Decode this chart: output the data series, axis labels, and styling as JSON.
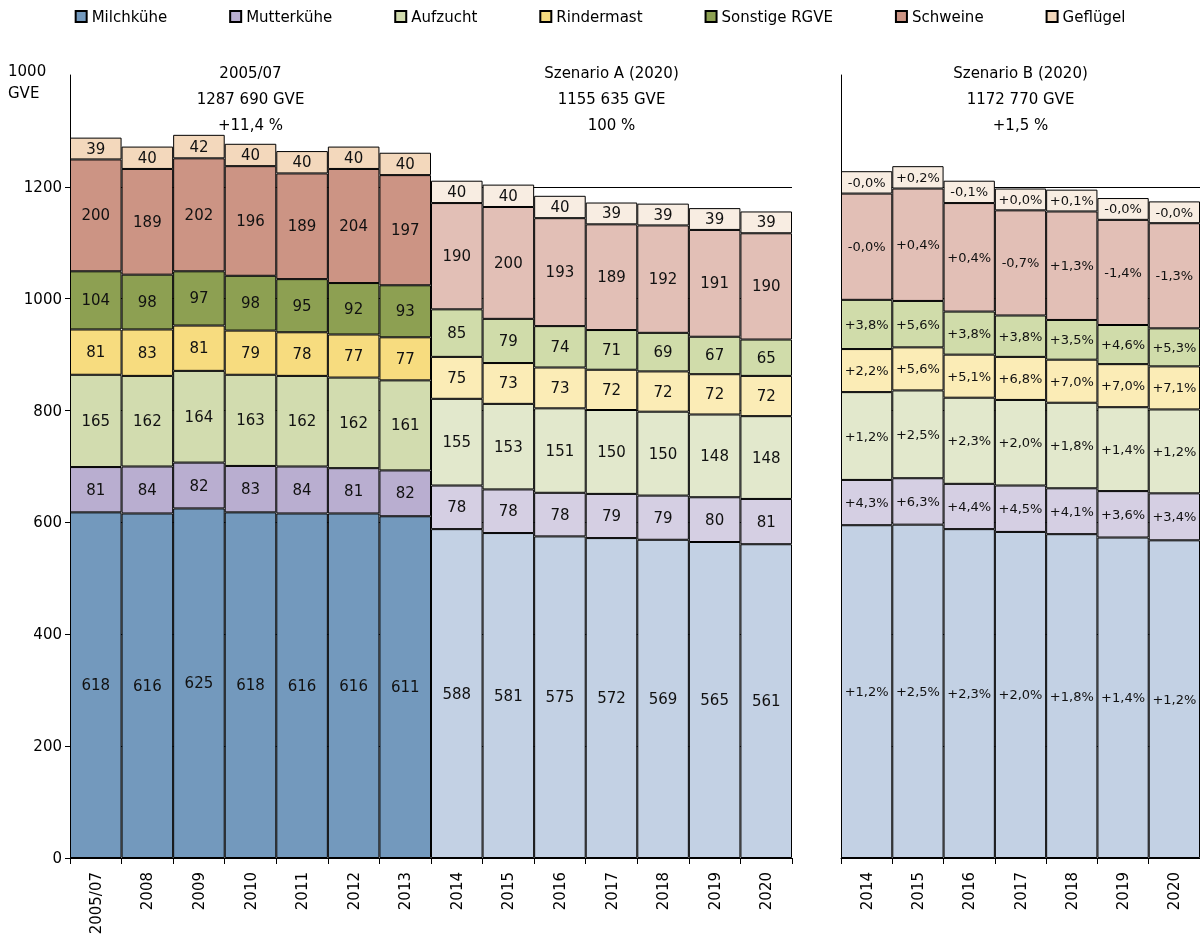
{
  "chart_data": [
    {
      "type": "bar",
      "stacked": true,
      "ylabel": "1000\nGVE",
      "data_labels": true,
      "categories": [
        "2005/07",
        "2008",
        "2009",
        "2010",
        "2011",
        "2012",
        "2013",
        "2014",
        "2015",
        "2016",
        "2017",
        "2018",
        "2019",
        "2020"
      ],
      "series": [
        {
          "name": "Milchkühe",
          "color": "#7399bd",
          "colors": [
            "#7399bd",
            "#7399bd",
            "#7399bd",
            "#7399bd",
            "#7399bd",
            "#7399bd",
            "#7399bd",
            "#c3d1e4",
            "#c3d1e4",
            "#c3d1e4",
            "#c3d1e4",
            "#c3d1e4",
            "#c3d1e4",
            "#c3d1e4"
          ],
          "values": [
            618,
            616,
            625,
            618,
            616,
            616,
            611,
            588,
            581,
            575,
            572,
            569,
            565,
            561
          ]
        },
        {
          "name": "Mutterkühe",
          "color": "#b9aed0",
          "colors": [
            "#b9aed0",
            "#b9aed0",
            "#b9aed0",
            "#b9aed0",
            "#b9aed0",
            "#b9aed0",
            "#b9aed0",
            "#d5cfe3",
            "#d5cfe3",
            "#d5cfe3",
            "#d5cfe3",
            "#d5cfe3",
            "#d5cfe3",
            "#d5cfe3"
          ],
          "values": [
            81,
            84,
            82,
            83,
            84,
            81,
            82,
            78,
            78,
            78,
            79,
            79,
            80,
            81
          ]
        },
        {
          "name": "Aufzucht",
          "color": "#d2dcaf",
          "colors": [
            "#d2dcaf",
            "#d2dcaf",
            "#d2dcaf",
            "#d2dcaf",
            "#d2dcaf",
            "#d2dcaf",
            "#d2dcaf",
            "#e2e8cc",
            "#e2e8cc",
            "#e2e8cc",
            "#e2e8cc",
            "#e2e8cc",
            "#e2e8cc",
            "#e2e8cc"
          ],
          "values": [
            165,
            162,
            164,
            163,
            162,
            162,
            161,
            155,
            153,
            151,
            150,
            150,
            148,
            148
          ]
        },
        {
          "name": "Rindermast",
          "color": "#f7dc7f",
          "colors": [
            "#f7dc7f",
            "#f7dc7f",
            "#f7dc7f",
            "#f7dc7f",
            "#f7dc7f",
            "#f7dc7f",
            "#f7dc7f",
            "#fbecb6",
            "#fbecb6",
            "#fbecb6",
            "#fbecb6",
            "#fbecb6",
            "#fbecb6",
            "#fbecb6"
          ],
          "values": [
            81,
            83,
            81,
            79,
            78,
            77,
            77,
            75,
            73,
            73,
            72,
            72,
            72,
            72
          ]
        },
        {
          "name": "Sonstige RGVE",
          "color": "#8da052",
          "colors": [
            "#8da052",
            "#8da052",
            "#8da052",
            "#8da052",
            "#8da052",
            "#8da052",
            "#8da052",
            "#d0dcaa",
            "#d0dcaa",
            "#d0dcaa",
            "#d0dcaa",
            "#d0dcaa",
            "#d0dcaa",
            "#d0dcaa"
          ],
          "values": [
            104,
            98,
            97,
            98,
            95,
            92,
            93,
            85,
            79,
            74,
            71,
            69,
            67,
            65
          ]
        },
        {
          "name": "Schweine",
          "color": "#cc9484",
          "colors": [
            "#cc9484",
            "#cc9484",
            "#cc9484",
            "#cc9484",
            "#cc9484",
            "#cc9484",
            "#cc9484",
            "#e2bfb6",
            "#e2bfb6",
            "#e2bfb6",
            "#e2bfb6",
            "#e2bfb6",
            "#e2bfb6",
            "#e2bfb6"
          ],
          "values": [
            200,
            189,
            202,
            196,
            189,
            204,
            197,
            190,
            200,
            193,
            189,
            192,
            191,
            190
          ]
        },
        {
          "name": "Geflügel",
          "color": "#f3d8bc",
          "colors": [
            "#f3d8bc",
            "#f3d8bc",
            "#f3d8bc",
            "#f3d8bc",
            "#f3d8bc",
            "#f3d8bc",
            "#f3d8bc",
            "#f8ede2",
            "#f8ede2",
            "#f8ede2",
            "#f8ede2",
            "#f8ede2",
            "#f8ede2",
            "#f8ede2"
          ],
          "values": [
            39,
            40,
            42,
            40,
            40,
            40,
            40,
            40,
            40,
            40,
            39,
            39,
            39,
            39
          ]
        }
      ],
      "ylim": [
        0,
        1400
      ],
      "yticks": [
        0,
        200,
        400,
        600,
        800,
        1000,
        1200
      ],
      "grid": "y",
      "legend": "top",
      "annotations": [
        "2005/07\n1287 690 GVE\n+11,4 %",
        "Szenario A (2020)\n1155 635 GVE\n100 %"
      ]
    },
    {
      "type": "bar",
      "stacked": true,
      "tick_labels": "x",
      "categories": [
        "2014",
        "2015",
        "2016",
        "2017",
        "2018",
        "2019",
        "2020"
      ],
      "series": [
        {
          "color": "#c3d1e4",
          "values": [
            595,
            596,
            588,
            583,
            579,
            573,
            568
          ]
        },
        {
          "color": "#d5cfe3",
          "values": [
            81,
            83,
            81,
            83,
            82,
            83,
            84
          ]
        },
        {
          "color": "#e2e8cc",
          "values": [
            157,
            157,
            154,
            153,
            153,
            150,
            150
          ]
        },
        {
          "color": "#fbecb6",
          "values": [
            77,
            77,
            77,
            77,
            77,
            77,
            77
          ]
        },
        {
          "color": "#d0dcaa",
          "values": [
            88,
            83,
            77,
            74,
            71,
            70,
            68
          ]
        },
        {
          "color": "#e2bfb6",
          "values": [
            190,
            201,
            194,
            188,
            194,
            188,
            188
          ]
        },
        {
          "color": "#f8ede2",
          "values": [
            40,
            40,
            40,
            39,
            39,
            39,
            39
          ]
        }
      ],
      "ylim": [
        0,
        1400
      ],
      "yticks": [
        0,
        200,
        400,
        600,
        800,
        1000,
        1200
      ],
      "grid": "y",
      "annotations": [
        "Szenario B (2020)\n1172 770 GVE\n+1,5 %",
        "+1,2%",
        "+2,5%",
        "+2,3%",
        "+2,0%",
        "+1,8%",
        "+1,4%",
        "+1,2%",
        "+4,3%",
        "+6,3%",
        "+4,4%",
        "+4,5%",
        "+4,1%",
        "+3,6%",
        "+3,4%",
        "+1,2%",
        "+2,5%",
        "+2,3%",
        "+2,0%",
        "+1,8%",
        "+1,4%",
        "+1,2%",
        "+2,2%",
        "+5,6%",
        "+5,1%",
        "+6,8%",
        "+7,0%",
        "+7,0%",
        "+7,1%",
        "+3,8%",
        "+5,6%",
        "+3,8%",
        "+3,8%",
        "+3,5%",
        "+4,6%",
        "+5,3%",
        "-0,0%",
        "+0,4%",
        "+0,4%",
        "-0,7%",
        "+1,3%",
        "-1,4%",
        "-1,3%",
        "-0,0%",
        "+0,2%",
        "-0,1%",
        "+0,0%",
        "+0,1%",
        "-0,0%",
        "-0,0%"
      ]
    }
  ]
}
